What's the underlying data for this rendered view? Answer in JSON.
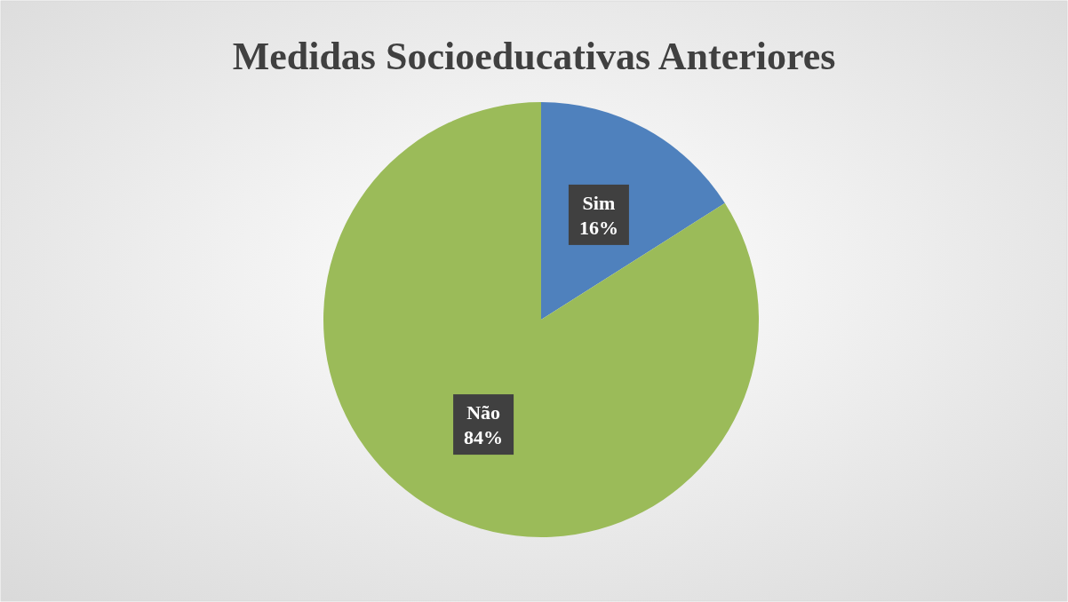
{
  "chart_data": {
    "type": "pie",
    "title": "Medidas Socioeducativas Anteriores",
    "categories": [
      "Sim",
      "Não"
    ],
    "values": [
      16,
      84
    ],
    "value_labels": [
      "16%",
      "84%"
    ],
    "colors": [
      "#4f81bd",
      "#9bbb59"
    ]
  }
}
